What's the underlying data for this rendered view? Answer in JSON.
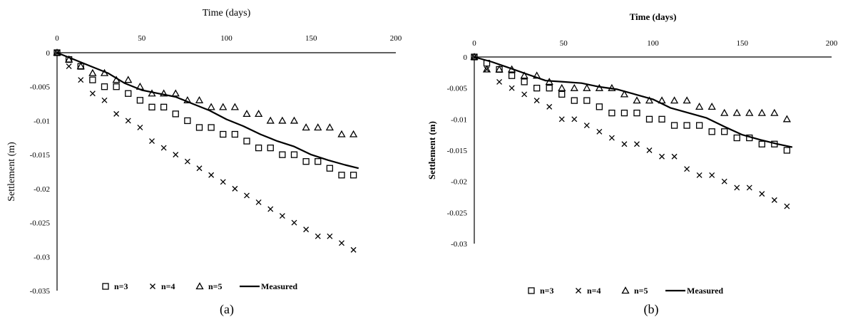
{
  "chart_data": [
    {
      "type": "scatter",
      "panel_label": "(a)",
      "xlabel": "Time (days)",
      "ylabel": "Settlement (m)",
      "xlim": [
        0,
        200
      ],
      "ylim": [
        -0.035,
        0
      ],
      "x_ticks": [
        0,
        50,
        100,
        150,
        200
      ],
      "x_tick_labels": [
        "0",
        "50",
        "100",
        "150",
        "200"
      ],
      "y_ticks": [
        0,
        -0.005,
        -0.01,
        -0.015,
        -0.02,
        -0.025,
        -0.03,
        -0.035
      ],
      "y_tick_labels": [
        "0",
        "-0.005",
        "-0.01",
        "-0.015",
        "-0.02",
        "-0.025",
        "-0.03",
        "-0.035"
      ],
      "x_axis_position": "top",
      "legend_position": "bottom",
      "series": [
        {
          "name": "n=3",
          "marker": "square",
          "x": [
            0,
            7,
            14,
            21,
            28,
            35,
            42,
            49,
            56,
            63,
            70,
            77,
            84,
            91,
            98,
            105,
            112,
            119,
            126,
            133,
            140,
            147,
            154,
            161,
            168,
            175
          ],
          "y": [
            0,
            -0.001,
            -0.002,
            -0.004,
            -0.005,
            -0.005,
            -0.006,
            -0.007,
            -0.008,
            -0.008,
            -0.009,
            -0.01,
            -0.011,
            -0.011,
            -0.012,
            -0.012,
            -0.013,
            -0.014,
            -0.014,
            -0.015,
            -0.015,
            -0.016,
            -0.016,
            -0.017,
            -0.018,
            -0.018
          ]
        },
        {
          "name": "n=4",
          "marker": "cross",
          "x": [
            0,
            7,
            14,
            21,
            28,
            35,
            42,
            49,
            56,
            63,
            70,
            77,
            84,
            91,
            98,
            105,
            112,
            119,
            126,
            133,
            140,
            147,
            154,
            161,
            168,
            175
          ],
          "y": [
            0,
            -0.002,
            -0.004,
            -0.006,
            -0.007,
            -0.009,
            -0.01,
            -0.011,
            -0.013,
            -0.014,
            -0.015,
            -0.016,
            -0.017,
            -0.018,
            -0.019,
            -0.02,
            -0.021,
            -0.022,
            -0.023,
            -0.024,
            -0.025,
            -0.026,
            -0.027,
            -0.027,
            -0.028,
            -0.029
          ]
        },
        {
          "name": "n=5",
          "marker": "triangle",
          "x": [
            0,
            7,
            14,
            21,
            28,
            35,
            42,
            49,
            56,
            63,
            70,
            77,
            84,
            91,
            98,
            105,
            112,
            119,
            126,
            133,
            140,
            147,
            154,
            161,
            168,
            175
          ],
          "y": [
            0,
            -0.001,
            -0.002,
            -0.003,
            -0.003,
            -0.004,
            -0.004,
            -0.005,
            -0.006,
            -0.006,
            -0.006,
            -0.007,
            -0.007,
            -0.008,
            -0.008,
            -0.008,
            -0.009,
            -0.009,
            -0.01,
            -0.01,
            -0.01,
            -0.011,
            -0.011,
            -0.011,
            -0.012,
            -0.012
          ]
        },
        {
          "name": "Measured",
          "marker": "line",
          "x": [
            0,
            10,
            20,
            30,
            40,
            50,
            60,
            70,
            80,
            90,
            100,
            110,
            120,
            130,
            140,
            150,
            160,
            170,
            178
          ],
          "y": [
            0,
            -0.001,
            -0.002,
            -0.003,
            -0.0045,
            -0.0055,
            -0.006,
            -0.0065,
            -0.0075,
            -0.0085,
            -0.0098,
            -0.0108,
            -0.012,
            -0.013,
            -0.0138,
            -0.015,
            -0.0158,
            -0.0165,
            -0.017
          ]
        }
      ]
    },
    {
      "type": "scatter",
      "panel_label": "(b)",
      "xlabel": "Time (days)",
      "ylabel": "Settlement (m)",
      "xlim": [
        0,
        200
      ],
      "ylim": [
        -0.03,
        0
      ],
      "x_ticks": [
        0,
        50,
        100,
        150,
        200
      ],
      "x_tick_labels": [
        "0",
        "50",
        "100",
        "150",
        "200"
      ],
      "y_ticks": [
        0,
        -0.005,
        -0.01,
        -0.015,
        -0.02,
        -0.025,
        -0.03
      ],
      "y_tick_labels": [
        "0",
        "-0.005",
        "-0.01",
        "-0.015",
        "-0.02",
        "-0.025",
        "-0.03"
      ],
      "x_axis_position": "top",
      "legend_position": "bottom",
      "series": [
        {
          "name": "n=3",
          "marker": "square",
          "x": [
            0,
            7,
            14,
            21,
            28,
            35,
            42,
            49,
            56,
            63,
            70,
            77,
            84,
            91,
            98,
            105,
            112,
            119,
            126,
            133,
            140,
            147,
            154,
            161,
            168,
            175
          ],
          "y": [
            0,
            -0.001,
            -0.002,
            -0.003,
            -0.004,
            -0.005,
            -0.005,
            -0.006,
            -0.007,
            -0.007,
            -0.008,
            -0.009,
            -0.009,
            -0.009,
            -0.01,
            -0.01,
            -0.011,
            -0.011,
            -0.011,
            -0.012,
            -0.012,
            -0.013,
            -0.013,
            -0.014,
            -0.014,
            -0.015
          ]
        },
        {
          "name": "n=4",
          "marker": "cross",
          "x": [
            0,
            7,
            14,
            21,
            28,
            35,
            42,
            49,
            56,
            63,
            70,
            77,
            84,
            91,
            98,
            105,
            112,
            119,
            126,
            133,
            140,
            147,
            154,
            161,
            168,
            175
          ],
          "y": [
            0,
            -0.002,
            -0.004,
            -0.005,
            -0.006,
            -0.007,
            -0.008,
            -0.01,
            -0.01,
            -0.011,
            -0.012,
            -0.013,
            -0.014,
            -0.014,
            -0.015,
            -0.016,
            -0.016,
            -0.018,
            -0.019,
            -0.019,
            -0.02,
            -0.021,
            -0.021,
            -0.022,
            -0.023,
            -0.024
          ]
        },
        {
          "name": "n=5",
          "marker": "triangle",
          "x": [
            0,
            7,
            14,
            21,
            28,
            35,
            42,
            49,
            56,
            63,
            70,
            77,
            84,
            91,
            98,
            105,
            112,
            119,
            126,
            133,
            140,
            147,
            154,
            161,
            168,
            175
          ],
          "y": [
            0,
            -0.002,
            -0.002,
            -0.002,
            -0.003,
            -0.003,
            -0.004,
            -0.005,
            -0.005,
            -0.005,
            -0.005,
            -0.005,
            -0.006,
            -0.007,
            -0.007,
            -0.007,
            -0.007,
            -0.007,
            -0.008,
            -0.008,
            -0.009,
            -0.009,
            -0.009,
            -0.009,
            -0.009,
            -0.01
          ]
        },
        {
          "name": "Measured",
          "marker": "line",
          "x": [
            0,
            10,
            20,
            30,
            40,
            50,
            60,
            70,
            80,
            90,
            100,
            110,
            120,
            130,
            140,
            150,
            160,
            170,
            178
          ],
          "y": [
            0,
            -0.0008,
            -0.0018,
            -0.0028,
            -0.0038,
            -0.004,
            -0.0042,
            -0.0048,
            -0.0052,
            -0.006,
            -0.0068,
            -0.0082,
            -0.009,
            -0.0098,
            -0.0112,
            -0.0125,
            -0.0133,
            -0.014,
            -0.0145
          ]
        }
      ]
    }
  ]
}
